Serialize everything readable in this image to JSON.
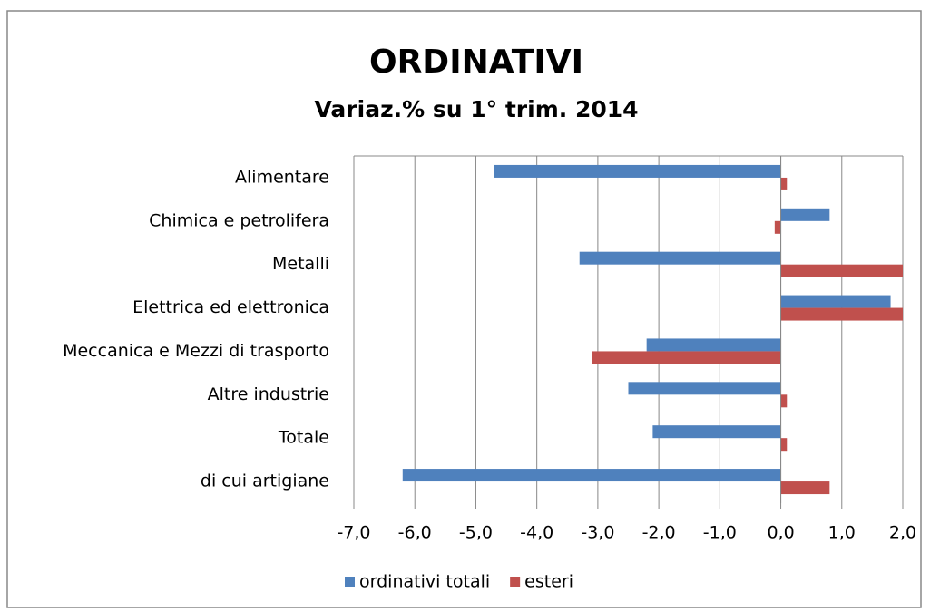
{
  "chart_data": {
    "type": "bar",
    "orientation": "horizontal",
    "title": "ORDINATIVI",
    "subtitle": "Variaz.% su 1° trim. 2014",
    "categories": [
      "Alimentare",
      "Chimica e petrolifera",
      "Metalli",
      "Elettrica ed elettronica",
      "Meccanica e Mezzi di trasporto",
      "Altre industrie",
      "Totale",
      "di cui artigiane"
    ],
    "series": [
      {
        "name": "ordinativi totali",
        "color": "#4f81bd",
        "values": [
          -4.7,
          0.8,
          -3.3,
          1.8,
          -2.2,
          -2.5,
          -2.1,
          -6.2
        ]
      },
      {
        "name": "esteri",
        "color": "#c0504d",
        "values": [
          0.1,
          -0.1,
          2.0,
          2.0,
          -3.1,
          0.1,
          0.1,
          0.8
        ]
      }
    ],
    "xlim": [
      -7,
      2
    ],
    "xticks": [
      {
        "value": -7,
        "label": "-7,0"
      },
      {
        "value": -6,
        "label": "-6,0"
      },
      {
        "value": -5,
        "label": "-5,0"
      },
      {
        "value": -4,
        "label": "-4,0"
      },
      {
        "value": -3,
        "label": "-3,0"
      },
      {
        "value": -2,
        "label": "-2,0"
      },
      {
        "value": -1,
        "label": "-1,0"
      },
      {
        "value": 0,
        "label": "0,0"
      },
      {
        "value": 1,
        "label": "1,0"
      },
      {
        "value": 2,
        "label": "2,0"
      }
    ],
    "grid": true,
    "legend": "bottom"
  }
}
